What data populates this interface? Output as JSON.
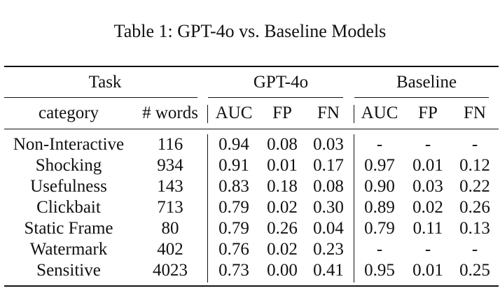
{
  "caption": "Table 1: GPT-4o vs. Baseline Models",
  "header": {
    "group_task": "Task",
    "group_gpt": "GPT-4o",
    "group_baseline": "Baseline",
    "columns": [
      "category",
      "# words",
      "AUC",
      "FP",
      "FN",
      "AUC",
      "FP",
      "FN"
    ]
  },
  "rows": [
    [
      "Non-Interactive",
      "116",
      "0.94",
      "0.08",
      "0.03",
      "-",
      "-",
      "-"
    ],
    [
      "Shocking",
      "934",
      "0.91",
      "0.01",
      "0.17",
      "0.97",
      "0.01",
      "0.12"
    ],
    [
      "Usefulness",
      "143",
      "0.83",
      "0.18",
      "0.08",
      "0.90",
      "0.03",
      "0.22"
    ],
    [
      "Clickbait",
      "713",
      "0.79",
      "0.02",
      "0.30",
      "0.89",
      "0.02",
      "0.26"
    ],
    [
      "Static Frame",
      "80",
      "0.79",
      "0.26",
      "0.04",
      "0.79",
      "0.11",
      "0.13"
    ],
    [
      "Watermark",
      "402",
      "0.76",
      "0.02",
      "0.23",
      "-",
      "-",
      "-"
    ],
    [
      "Sensitive",
      "4023",
      "0.73",
      "0.00",
      "0.41",
      "0.95",
      "0.01",
      "0.25"
    ]
  ]
}
